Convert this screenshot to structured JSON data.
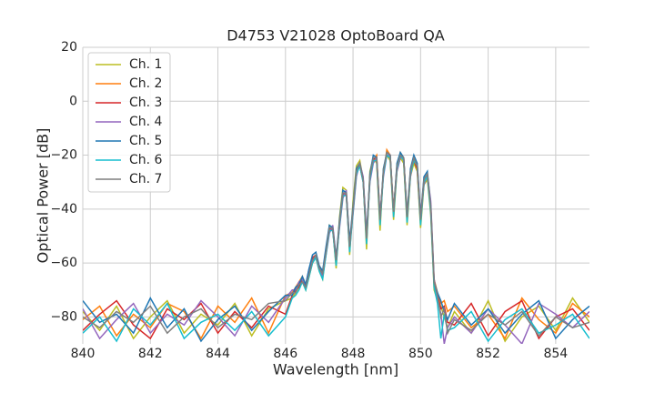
{
  "chart_data": {
    "type": "line",
    "title": "D4753 V21028 OptoBoard QA",
    "x_label": "Wavelength [nm]",
    "y_label": "Optical Power [dB]",
    "xlim": [
      840,
      855
    ],
    "ylim": [
      -90,
      20
    ],
    "xticks": [
      840,
      842,
      844,
      846,
      848,
      850,
      852,
      854
    ],
    "yticks": [
      20,
      0,
      {
        "value": -20,
        "label": "−20"
      },
      {
        "value": -40,
        "label": "−40"
      },
      {
        "value": -60,
        "label": "−60"
      },
      {
        "value": -80,
        "label": "−80"
      }
    ],
    "grid": true,
    "legend": "upper left",
    "x": [
      840,
      840.5,
      841,
      841.5,
      842,
      842.5,
      843,
      843.5,
      844,
      844.5,
      845,
      845.5,
      846,
      846.2,
      846.3,
      846.4,
      846.5,
      846.6,
      846.7,
      846.8,
      846.9,
      847,
      847.1,
      847.2,
      847.3,
      847.4,
      847.5,
      847.6,
      847.7,
      847.8,
      847.9,
      848,
      848.1,
      848.2,
      848.3,
      848.4,
      848.5,
      848.6,
      848.7,
      848.8,
      848.9,
      849,
      849.1,
      849.2,
      849.3,
      849.4,
      849.5,
      849.6,
      849.7,
      849.8,
      849.9,
      850,
      850.1,
      850.2,
      850.3,
      850.4,
      850.5,
      850.6,
      850.7,
      850.8,
      851,
      851.5,
      852,
      852.5,
      853,
      853.5,
      854,
      854.5,
      855
    ],
    "series": [
      {
        "name": "Ch. 1",
        "color": "#bcbd22",
        "values": [
          -78,
          -85,
          -76,
          -88,
          -80,
          -74,
          -86,
          -79,
          -83,
          -75,
          -87,
          -77,
          -74,
          -73,
          -71,
          -69,
          -67,
          -70,
          -65,
          -60,
          -58,
          -63,
          -66,
          -56,
          -46,
          -47,
          -62,
          -43,
          -32,
          -33,
          -57,
          -37,
          -24,
          -22,
          -29,
          -55,
          -26,
          -21,
          -23,
          -48,
          -25,
          -20,
          -22,
          -44,
          -26,
          -21,
          -23,
          -46,
          -28,
          -23,
          -26,
          -47,
          -31,
          -29,
          -42,
          -70,
          -74,
          -76,
          -80,
          -84,
          -78,
          -86,
          -74,
          -89,
          -80,
          -76,
          -85,
          -73,
          -82
        ]
      },
      {
        "name": "Ch. 2",
        "color": "#ff7f0e",
        "values": [
          -81,
          -76,
          -87,
          -79,
          -84,
          -75,
          -78,
          -88,
          -76,
          -82,
          -73,
          -86,
          -72,
          -71,
          -69,
          -67,
          -65,
          -68,
          -63,
          -59,
          -58,
          -61,
          -63,
          -56,
          -48,
          -47,
          -59,
          -46,
          -35,
          -34,
          -54,
          -41,
          -27,
          -23,
          -29,
          -50,
          -29,
          -22,
          -20,
          -43,
          -27,
          -18,
          -20,
          -40,
          -25,
          -19,
          -21,
          -42,
          -27,
          -21,
          -24,
          -43,
          -29,
          -27,
          -38,
          -66,
          -71,
          -75,
          -74,
          -78,
          -76,
          -84,
          -79,
          -88,
          -73,
          -81,
          -86,
          -75,
          -80
        ]
      },
      {
        "name": "Ch. 3",
        "color": "#d62728",
        "values": [
          -85,
          -79,
          -74,
          -83,
          -88,
          -77,
          -81,
          -75,
          -86,
          -78,
          -84,
          -76,
          -79,
          -72,
          -70,
          -69,
          -66,
          -69,
          -64,
          -58,
          -57,
          -62,
          -64,
          -55,
          -47,
          -48,
          -60,
          -45,
          -34,
          -35,
          -55,
          -40,
          -26,
          -24,
          -30,
          -52,
          -28,
          -21,
          -22,
          -45,
          -26,
          -20,
          -21,
          -42,
          -24,
          -20,
          -22,
          -44,
          -26,
          -22,
          -25,
          -45,
          -30,
          -28,
          -40,
          -68,
          -72,
          -77,
          -76,
          -82,
          -83,
          -75,
          -87,
          -78,
          -74,
          -88,
          -80,
          -77,
          -85
        ]
      },
      {
        "name": "Ch. 4",
        "color": "#9467bd",
        "values": [
          -77,
          -88,
          -81,
          -75,
          -86,
          -79,
          -83,
          -74,
          -80,
          -87,
          -76,
          -82,
          -73,
          -70,
          -70,
          -67,
          -66,
          -68,
          -62,
          -59,
          -58,
          -62,
          -65,
          -57,
          -49,
          -46,
          -58,
          -47,
          -36,
          -33,
          -53,
          -42,
          -28,
          -23,
          -28,
          -49,
          -30,
          -23,
          -21,
          -42,
          -28,
          -20,
          -20,
          -41,
          -26,
          -21,
          -21,
          -43,
          -28,
          -21,
          -23,
          -42,
          -31,
          -27,
          -37,
          -66,
          -73,
          -79,
          -90,
          -84,
          -80,
          -86,
          -77,
          -83,
          -90,
          -75,
          -79,
          -84,
          -78
        ]
      },
      {
        "name": "Ch. 5",
        "color": "#1f77b4",
        "values": [
          -74,
          -82,
          -79,
          -86,
          -73,
          -84,
          -77,
          -89,
          -81,
          -76,
          -85,
          -78,
          -72,
          -72,
          -69,
          -68,
          -65,
          -68,
          -62,
          -57,
          -56,
          -61,
          -63,
          -54,
          -46,
          -47,
          -58,
          -44,
          -33,
          -34,
          -52,
          -39,
          -25,
          -23,
          -29,
          -50,
          -27,
          -20,
          -21,
          -44,
          -25,
          -19,
          -20,
          -41,
          -23,
          -19,
          -21,
          -42,
          -25,
          -20,
          -23,
          -43,
          -28,
          -26,
          -39,
          -67,
          -71,
          -74,
          -78,
          -81,
          -75,
          -83,
          -77,
          -86,
          -79,
          -74,
          -88,
          -81,
          -76
        ]
      },
      {
        "name": "Ch. 6",
        "color": "#17becf",
        "values": [
          -86,
          -80,
          -89,
          -77,
          -83,
          -75,
          -88,
          -82,
          -79,
          -85,
          -78,
          -87,
          -80,
          -73,
          -72,
          -70,
          -67,
          -70,
          -65,
          -60,
          -58,
          -63,
          -66,
          -57,
          -48,
          -48,
          -61,
          -46,
          -35,
          -35,
          -56,
          -41,
          -27,
          -24,
          -30,
          -53,
          -29,
          -22,
          -22,
          -46,
          -27,
          -20,
          -21,
          -43,
          -25,
          -20,
          -22,
          -45,
          -27,
          -22,
          -24,
          -46,
          -30,
          -28,
          -41,
          -69,
          -75,
          -88,
          -79,
          -85,
          -84,
          -78,
          -89,
          -81,
          -77,
          -86,
          -83,
          -79,
          -88
        ]
      },
      {
        "name": "Ch. 7",
        "color": "#7f7f7f",
        "values": [
          -80,
          -84,
          -78,
          -82,
          -76,
          -86,
          -80,
          -77,
          -84,
          -79,
          -81,
          -75,
          -74,
          -71,
          -71,
          -68,
          -67,
          -69,
          -64,
          -59,
          -57,
          -62,
          -64,
          -56,
          -47,
          -47,
          -59,
          -45,
          -34,
          -34,
          -54,
          -40,
          -26,
          -23,
          -29,
          -51,
          -28,
          -21,
          -21,
          -44,
          -26,
          -19,
          -20,
          -41,
          -24,
          -20,
          -21,
          -43,
          -26,
          -21,
          -24,
          -44,
          -29,
          -27,
          -39,
          -67,
          -72,
          -80,
          -77,
          -86,
          -81,
          -85,
          -79,
          -83,
          -78,
          -87,
          -80,
          -84,
          -82
        ]
      }
    ]
  }
}
